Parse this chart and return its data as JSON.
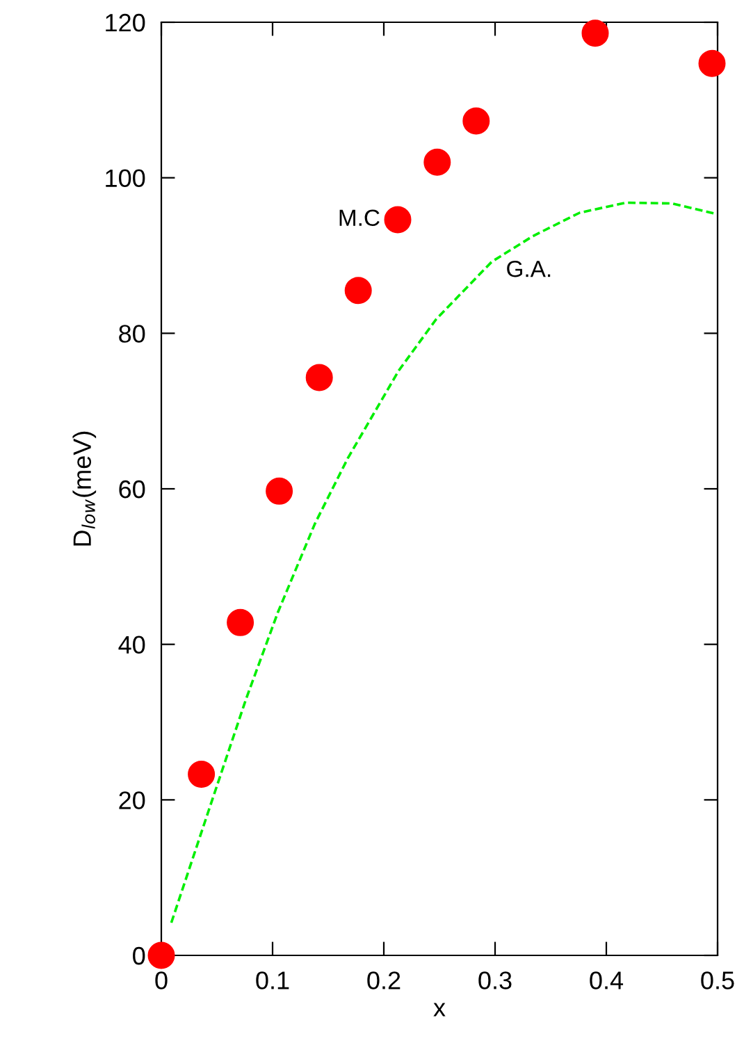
{
  "chart_data": {
    "type": "scatter",
    "xlabel": "x",
    "ylabel": "D$_{low}$(meV)",
    "xlim": [
      0,
      0.5
    ],
    "ylim": [
      0,
      120
    ],
    "xticks": [
      0,
      0.1,
      0.2,
      0.3,
      0.4,
      0.5
    ],
    "yticks": [
      0,
      20,
      40,
      60,
      80,
      100,
      120
    ],
    "grid": false,
    "legend": false,
    "series": [
      {
        "name": "M.C",
        "color": "#ff0000",
        "marker": "circle",
        "x": [
          0,
          0.036,
          0.071,
          0.106,
          0.142,
          0.177,
          0.2125,
          0.248,
          0.283,
          0.39,
          0.495
        ],
        "values": [
          0,
          23.3,
          42.8,
          59.7,
          74.3,
          85.5,
          94.6,
          102.0,
          107.3,
          118.6,
          114.7
        ]
      },
      {
        "name": "G.A.",
        "type": "line",
        "color": "#00ee00",
        "line_style": "dashed",
        "marker": "none",
        "x": [
          0.009,
          0.0425,
          0.076,
          0.105,
          0.138,
          0.1675,
          0.2134,
          0.247,
          0.297,
          0.334,
          0.376,
          0.4175,
          0.459,
          0.5
        ],
        "values": [
          4.2,
          18.6,
          32.9,
          44.2,
          55.5,
          63.9,
          75.2,
          81.8,
          89.2,
          92.5,
          95.5,
          96.8,
          96.7,
          95.3
        ]
      }
    ]
  }
}
